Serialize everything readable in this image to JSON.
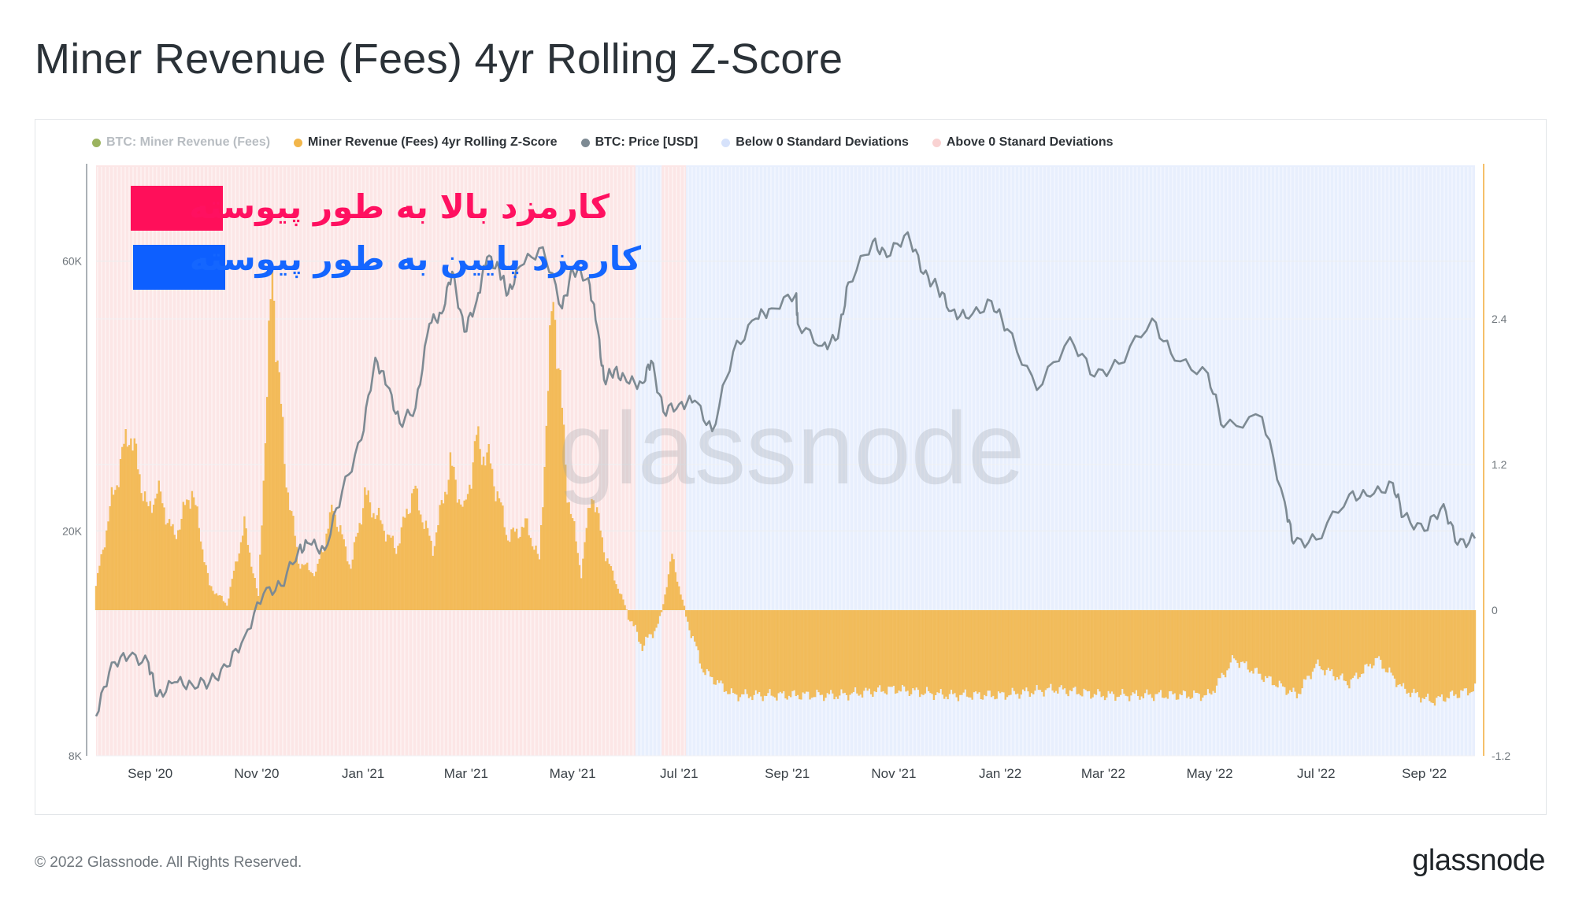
{
  "title": "Miner Revenue (Fees) 4yr Rolling Z-Score",
  "footer": {
    "copyright": "© 2022 Glassnode. All Rights Reserved.",
    "logo": "glassnode"
  },
  "watermark": "glassnode",
  "legend": [
    {
      "label": "BTC: Miner Revenue (Fees)",
      "color": "#7a9a2a",
      "muted": true
    },
    {
      "label": "Miner Revenue (Fees) 4yr Rolling Z-Score",
      "color": "#f2b64a",
      "muted": false
    },
    {
      "label": "BTC: Price [USD]",
      "color": "#7d8a93",
      "muted": false
    },
    {
      "label": "Below 0 Standard Deviations",
      "color": "#d6e2fb",
      "muted": false
    },
    {
      "label": "Above 0 Stanard Deviations",
      "color": "#f9d2d2",
      "muted": false
    }
  ],
  "annotations": [
    {
      "text": "کارمزد بالا به طور پیوسته",
      "color": "#ff1060",
      "swatch_color": "#ff0f5a"
    },
    {
      "text": "کارمزد پایین به طور پیوسته",
      "color": "#1466ff",
      "swatch_color": "#0d5fff"
    }
  ],
  "chart_data": {
    "type": "line",
    "x_ticks": [
      "Sep '20",
      "Nov '20",
      "Jan '21",
      "Mar '21",
      "May '21",
      "Jul '21",
      "Sep '21",
      "Nov '21",
      "Jan '22",
      "Mar '22",
      "May '22",
      "Jul '22",
      "Sep '22"
    ],
    "x_range": [
      "2020-08-01",
      "2022-09-30"
    ],
    "left_axis": {
      "label": "",
      "scale": "log",
      "ticks": [
        "8K",
        "20K",
        "60K"
      ],
      "tick_values": [
        8000,
        20000,
        60000
      ],
      "range": [
        8000,
        80000
      ]
    },
    "right_axis": {
      "label": "",
      "scale": "linear",
      "ticks": [
        "-1.2",
        "0",
        "1.2",
        "2.4"
      ],
      "tick_values": [
        -1.2,
        0,
        1.2,
        2.4
      ],
      "range": [
        -1.2,
        3.6
      ]
    },
    "grid": true,
    "legend_position": "top",
    "colors": {
      "price": "#7d8a93",
      "zscore": "#f2b64a",
      "zscore_edge": "#e49a1e",
      "above_band": "#f9d2d2",
      "below_band": "#d6e2fb",
      "right_axis_line": "#f5c06a"
    },
    "price_series": {
      "name": "BTC: Price [USD]",
      "points": [
        [
          "2020-08-01",
          9400
        ],
        [
          "2020-08-10",
          11700
        ],
        [
          "2020-08-20",
          12000
        ],
        [
          "2020-08-31",
          11700
        ],
        [
          "2020-09-05",
          10200
        ],
        [
          "2020-09-15",
          10800
        ],
        [
          "2020-09-25",
          10700
        ],
        [
          "2020-10-05",
          10800
        ],
        [
          "2020-10-15",
          11500
        ],
        [
          "2020-10-25",
          13000
        ],
        [
          "2020-11-05",
          15500
        ],
        [
          "2020-11-15",
          16000
        ],
        [
          "2020-11-25",
          18500
        ],
        [
          "2020-12-01",
          19000
        ],
        [
          "2020-12-10",
          18500
        ],
        [
          "2020-12-20",
          23500
        ],
        [
          "2020-12-31",
          29000
        ],
        [
          "2021-01-08",
          40500
        ],
        [
          "2021-01-15",
          36000
        ],
        [
          "2021-01-22",
          31000
        ],
        [
          "2021-01-31",
          33000
        ],
        [
          "2021-02-08",
          46500
        ],
        [
          "2021-02-15",
          48500
        ],
        [
          "2021-02-21",
          57500
        ],
        [
          "2021-02-28",
          45000
        ],
        [
          "2021-03-07",
          51000
        ],
        [
          "2021-03-13",
          61000
        ],
        [
          "2021-03-20",
          58000
        ],
        [
          "2021-03-25",
          52500
        ],
        [
          "2021-04-01",
          58800
        ],
        [
          "2021-04-14",
          63500
        ],
        [
          "2021-04-25",
          49500
        ],
        [
          "2021-05-01",
          57800
        ],
        [
          "2021-05-10",
          56000
        ],
        [
          "2021-05-15",
          46000
        ],
        [
          "2021-05-19",
          37000
        ],
        [
          "2021-05-25",
          38500
        ],
        [
          "2021-06-01",
          36700
        ],
        [
          "2021-06-10",
          36500
        ],
        [
          "2021-06-15",
          40000
        ],
        [
          "2021-06-22",
          32500
        ],
        [
          "2021-07-01",
          33500
        ],
        [
          "2021-07-10",
          34000
        ],
        [
          "2021-07-20",
          30000
        ],
        [
          "2021-08-01",
          41500
        ],
        [
          "2021-08-14",
          47500
        ],
        [
          "2021-08-23",
          49500
        ],
        [
          "2021-09-06",
          52500
        ],
        [
          "2021-09-07",
          46500
        ],
        [
          "2021-09-21",
          42500
        ],
        [
          "2021-09-30",
          43800
        ],
        [
          "2021-10-06",
          55000
        ],
        [
          "2021-10-20",
          65000
        ],
        [
          "2021-10-28",
          61000
        ],
        [
          "2021-11-09",
          67500
        ],
        [
          "2021-11-18",
          57000
        ],
        [
          "2021-11-26",
          54000
        ],
        [
          "2021-12-04",
          49000
        ],
        [
          "2021-12-14",
          47500
        ],
        [
          "2021-12-27",
          51000
        ],
        [
          "2022-01-05",
          45500
        ],
        [
          "2022-01-22",
          35500
        ],
        [
          "2022-02-10",
          44000
        ],
        [
          "2022-02-24",
          37500
        ],
        [
          "2022-03-10",
          39500
        ],
        [
          "2022-03-29",
          47500
        ],
        [
          "2022-04-11",
          40000
        ],
        [
          "2022-04-30",
          38000
        ],
        [
          "2022-05-09",
          30500
        ],
        [
          "2022-05-31",
          31800
        ],
        [
          "2022-06-13",
          22500
        ],
        [
          "2022-06-18",
          19000
        ],
        [
          "2022-07-01",
          19300
        ],
        [
          "2022-07-20",
          23200
        ],
        [
          "2022-08-01",
          23000
        ],
        [
          "2022-08-14",
          24300
        ],
        [
          "2022-08-20",
          21200
        ],
        [
          "2022-09-01",
          20000
        ],
        [
          "2022-09-12",
          22300
        ],
        [
          "2022-09-20",
          18900
        ],
        [
          "2022-09-30",
          19400
        ]
      ]
    },
    "zscore_series": {
      "name": "Miner Revenue (Fees) 4yr Rolling Z-Score",
      "points": [
        [
          "2020-08-01",
          0.2
        ],
        [
          "2020-08-10",
          0.9
        ],
        [
          "2020-08-20",
          1.5
        ],
        [
          "2020-08-31",
          0.8
        ],
        [
          "2020-09-05",
          1.0
        ],
        [
          "2020-09-15",
          0.6
        ],
        [
          "2020-09-25",
          1.0
        ],
        [
          "2020-10-05",
          0.2
        ],
        [
          "2020-10-15",
          0.05
        ],
        [
          "2020-10-25",
          0.7
        ],
        [
          "2020-11-02",
          0.1
        ],
        [
          "2020-11-10",
          2.8
        ],
        [
          "2020-11-17",
          1.2
        ],
        [
          "2020-11-25",
          0.4
        ],
        [
          "2020-12-05",
          0.3
        ],
        [
          "2020-12-15",
          0.85
        ],
        [
          "2020-12-25",
          0.35
        ],
        [
          "2021-01-02",
          0.95
        ],
        [
          "2021-01-10",
          0.75
        ],
        [
          "2021-01-20",
          0.5
        ],
        [
          "2021-01-30",
          1.0
        ],
        [
          "2021-02-10",
          0.5
        ],
        [
          "2021-02-20",
          1.2
        ],
        [
          "2021-02-28",
          0.8
        ],
        [
          "2021-03-07",
          1.4
        ],
        [
          "2021-03-15",
          1.2
        ],
        [
          "2021-03-25",
          0.6
        ],
        [
          "2021-04-05",
          0.7
        ],
        [
          "2021-04-12",
          0.4
        ],
        [
          "2021-04-20",
          2.65
        ],
        [
          "2021-04-28",
          1.0
        ],
        [
          "2021-05-06",
          0.3
        ],
        [
          "2021-05-12",
          1.0
        ],
        [
          "2021-05-20",
          0.45
        ],
        [
          "2021-06-01",
          0.0
        ],
        [
          "2021-06-10",
          -0.3
        ],
        [
          "2021-06-20",
          -0.1
        ],
        [
          "2021-06-27",
          0.45
        ],
        [
          "2021-07-05",
          -0.05
        ],
        [
          "2021-07-15",
          -0.5
        ],
        [
          "2021-08-01",
          -0.7
        ],
        [
          "2021-09-01",
          -0.7
        ],
        [
          "2021-10-01",
          -0.7
        ],
        [
          "2021-11-01",
          -0.65
        ],
        [
          "2021-12-01",
          -0.7
        ],
        [
          "2022-01-01",
          -0.7
        ],
        [
          "2022-02-01",
          -0.65
        ],
        [
          "2022-03-01",
          -0.7
        ],
        [
          "2022-04-01",
          -0.7
        ],
        [
          "2022-05-01",
          -0.7
        ],
        [
          "2022-05-15",
          -0.4
        ],
        [
          "2022-06-01",
          -0.55
        ],
        [
          "2022-06-20",
          -0.7
        ],
        [
          "2022-07-01",
          -0.45
        ],
        [
          "2022-07-20",
          -0.6
        ],
        [
          "2022-08-05",
          -0.4
        ],
        [
          "2022-08-20",
          -0.65
        ],
        [
          "2022-09-05",
          -0.75
        ],
        [
          "2022-09-30",
          -0.65
        ]
      ]
    },
    "deviation_bands": [
      {
        "state": "above",
        "from": "2020-08-01",
        "to": "2021-06-06"
      },
      {
        "state": "below",
        "from": "2021-06-06",
        "to": "2021-06-21"
      },
      {
        "state": "above",
        "from": "2021-06-21",
        "to": "2021-07-05"
      },
      {
        "state": "below",
        "from": "2021-07-05",
        "to": "2022-09-30"
      }
    ]
  }
}
